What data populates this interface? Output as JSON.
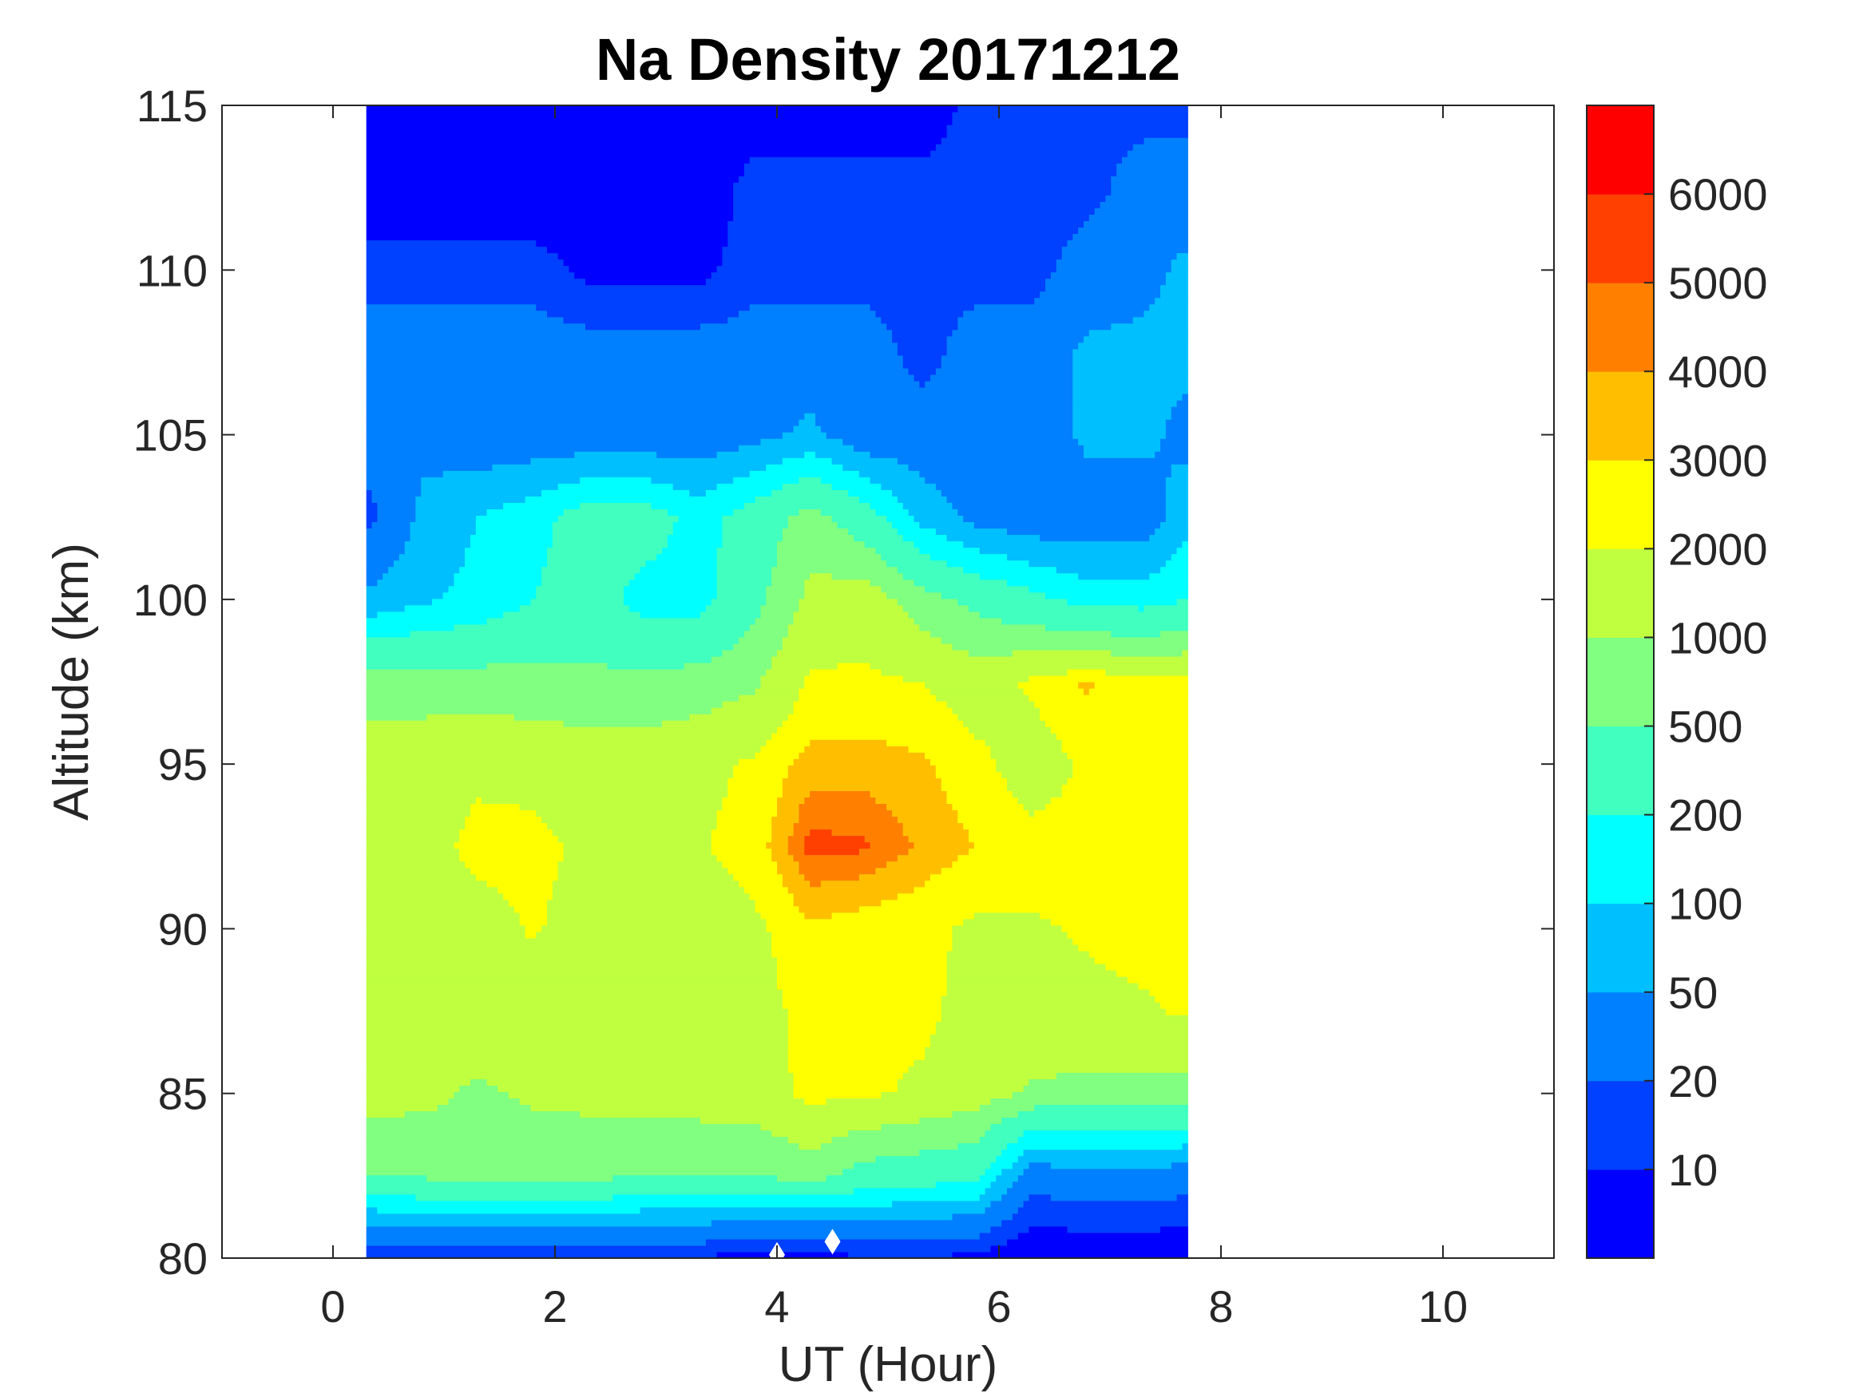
{
  "chart_data": {
    "type": "heatmap",
    "subtype": "filled-contour",
    "title": "Na Density 20171212",
    "xlabel": "UT (Hour)",
    "ylabel": "Altitude (km)",
    "xlim": [
      -1,
      11
    ],
    "ylim": [
      80,
      115
    ],
    "xticks": [
      0,
      2,
      4,
      6,
      8,
      10
    ],
    "yticks": [
      80,
      85,
      90,
      95,
      100,
      105,
      110,
      115
    ],
    "x": [
      0.3,
      0.8,
      1.3,
      1.8,
      2.3,
      2.8,
      3.3,
      3.8,
      4.3,
      4.8,
      5.3,
      5.8,
      6.3,
      6.8,
      7.3,
      7.7
    ],
    "altitude": [
      80,
      82.5,
      85,
      87.5,
      90,
      92.5,
      95,
      97.5,
      100,
      102.5,
      105,
      107.5,
      110,
      112.5,
      115
    ],
    "density": [
      [
        10,
        12,
        10,
        12,
        12,
        10,
        10,
        6,
        6,
        10,
        10,
        8,
        5,
        5,
        5,
        5
      ],
      [
        500,
        550,
        700,
        650,
        600,
        500,
        500,
        500,
        700,
        350,
        300,
        250,
        30,
        40,
        40,
        30
      ],
      [
        1300,
        1200,
        900,
        1100,
        1200,
        1300,
        1400,
        1500,
        2300,
        2200,
        1800,
        1400,
        900,
        800,
        800,
        800
      ],
      [
        1500,
        1500,
        1500,
        1500,
        1500,
        1500,
        1500,
        1600,
        2400,
        2400,
        2300,
        1600,
        1700,
        1800,
        1900,
        2100
      ],
      [
        1500,
        1500,
        1600,
        2100,
        1600,
        1500,
        1500,
        1800,
        2800,
        2500,
        2300,
        1800,
        1900,
        2100,
        2300,
        2300
      ],
      [
        1500,
        1600,
        2300,
        2300,
        1800,
        1700,
        1900,
        2500,
        5500,
        5200,
        3800,
        3000,
        2400,
        2400,
        2500,
        2500
      ],
      [
        1500,
        1600,
        1800,
        1700,
        1500,
        1500,
        1700,
        2200,
        3500,
        3500,
        3200,
        2300,
        1500,
        2200,
        2300,
        2300
      ],
      [
        700,
        700,
        700,
        650,
        600,
        600,
        700,
        900,
        2200,
        2200,
        2000,
        1500,
        2200,
        3200,
        2200,
        2500
      ],
      [
        60,
        90,
        120,
        200,
        300,
        150,
        150,
        400,
        1200,
        1500,
        700,
        400,
        250,
        150,
        150,
        200
      ],
      [
        15,
        60,
        100,
        150,
        300,
        300,
        150,
        300,
        700,
        300,
        80,
        40,
        30,
        30,
        30,
        80
      ],
      [
        30,
        40,
        30,
        30,
        30,
        30,
        30,
        40,
        60,
        30,
        30,
        30,
        30,
        60,
        60,
        40
      ],
      [
        30,
        30,
        30,
        30,
        30,
        30,
        30,
        30,
        30,
        30,
        15,
        30,
        30,
        60,
        60,
        60
      ],
      [
        15,
        15,
        15,
        15,
        8,
        8,
        8,
        15,
        15,
        15,
        15,
        15,
        15,
        30,
        40,
        60
      ],
      [
        5,
        5,
        5,
        5,
        5,
        5,
        5,
        15,
        15,
        15,
        15,
        15,
        15,
        15,
        30,
        30
      ],
      [
        5,
        5,
        5,
        5,
        5,
        5,
        5,
        5,
        5,
        5,
        5,
        15,
        15,
        15,
        15,
        15
      ]
    ],
    "levels": [
      0,
      10,
      20,
      50,
      100,
      200,
      500,
      1000,
      2000,
      3000,
      4000,
      5000,
      6000,
      7000
    ],
    "colorbar_labels": [
      "10",
      "20",
      "50",
      "100",
      "200",
      "500",
      "1000",
      "2000",
      "3000",
      "4000",
      "5000",
      "6000"
    ],
    "colors": [
      "#0000ff",
      "#0040ff",
      "#0080ff",
      "#00bfff",
      "#00ffff",
      "#40ffbf",
      "#80ff80",
      "#bfff40",
      "#ffff00",
      "#ffbf00",
      "#ff8000",
      "#ff4000",
      "#ff0000"
    ],
    "markers": [
      [
        4.0,
        80.1
      ],
      [
        4.5,
        80.5
      ]
    ],
    "grid": false,
    "colorbar_placement": "right"
  }
}
